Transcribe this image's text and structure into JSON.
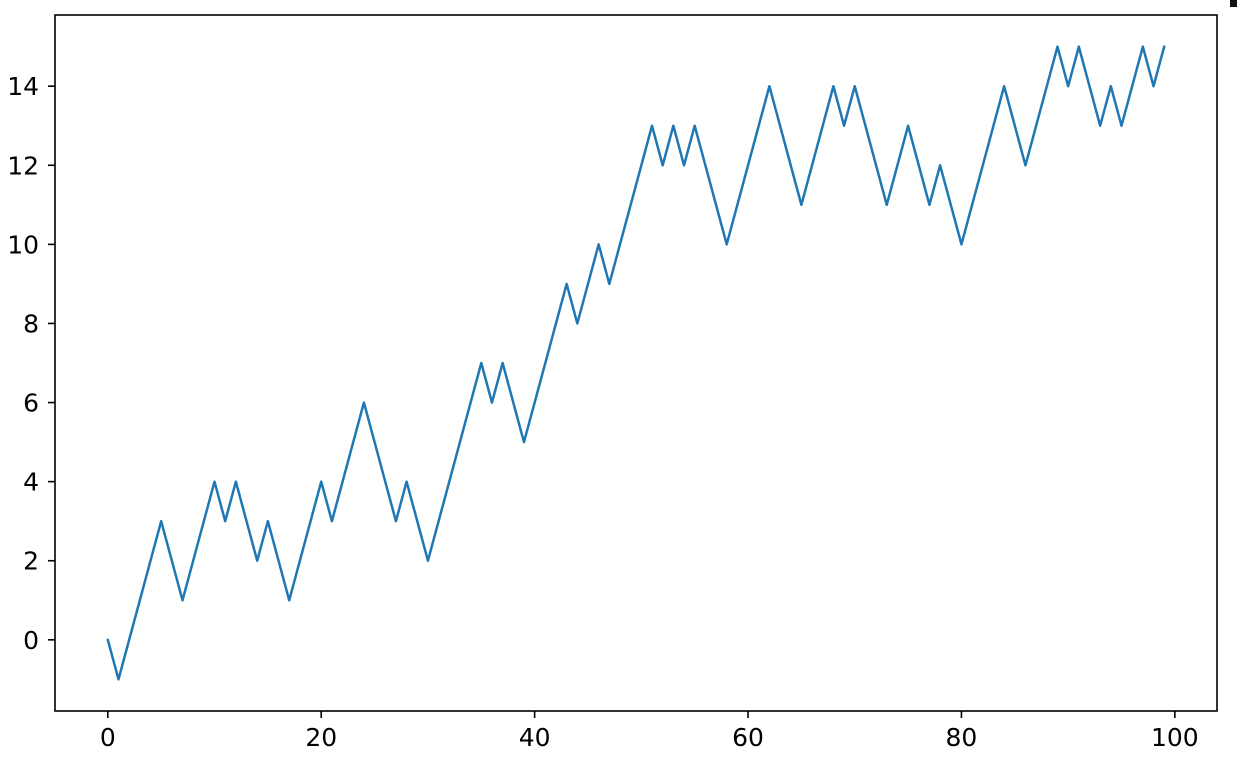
{
  "figure": {
    "background": "#ffffff",
    "plot_background": "#ffffff",
    "spine_color": "#000000",
    "tick_color": "#000000",
    "tick_label_color": "#000000"
  },
  "chart_data": {
    "type": "line",
    "x_start": 0,
    "x_step": 1,
    "n_points": 100,
    "y": [
      0,
      -1,
      0,
      1,
      2,
      3,
      2,
      1,
      2,
      3,
      4,
      3,
      4,
      3,
      2,
      3,
      2,
      1,
      2,
      3,
      4,
      3,
      4,
      5,
      6,
      5,
      4,
      3,
      4,
      3,
      2,
      3,
      4,
      5,
      6,
      7,
      6,
      7,
      6,
      5,
      6,
      7,
      8,
      9,
      8,
      9,
      10,
      9,
      10,
      11,
      12,
      13,
      12,
      13,
      12,
      13,
      12,
      11,
      10,
      11,
      12,
      13,
      14,
      13,
      12,
      11,
      12,
      13,
      14,
      13,
      14,
      13,
      12,
      11,
      12,
      13,
      12,
      11,
      12,
      11,
      10,
      11,
      12,
      13,
      14,
      13,
      12,
      13,
      14,
      15,
      14,
      15,
      14,
      13,
      14,
      13,
      14,
      15,
      14,
      15
    ],
    "xticks": [
      "0",
      "20",
      "40",
      "60",
      "80",
      "100"
    ],
    "xtick_values": [
      0,
      20,
      40,
      60,
      80,
      100
    ],
    "yticks": [
      "0",
      "2",
      "4",
      "6",
      "8",
      "10",
      "12",
      "14"
    ],
    "ytick_values": [
      0,
      2,
      4,
      6,
      8,
      10,
      12,
      14
    ],
    "xlim": [
      -4.95,
      103.95
    ],
    "ylim": [
      -1.8,
      15.8
    ],
    "grid": false,
    "legend": false,
    "line_color": "#1f77b4"
  }
}
